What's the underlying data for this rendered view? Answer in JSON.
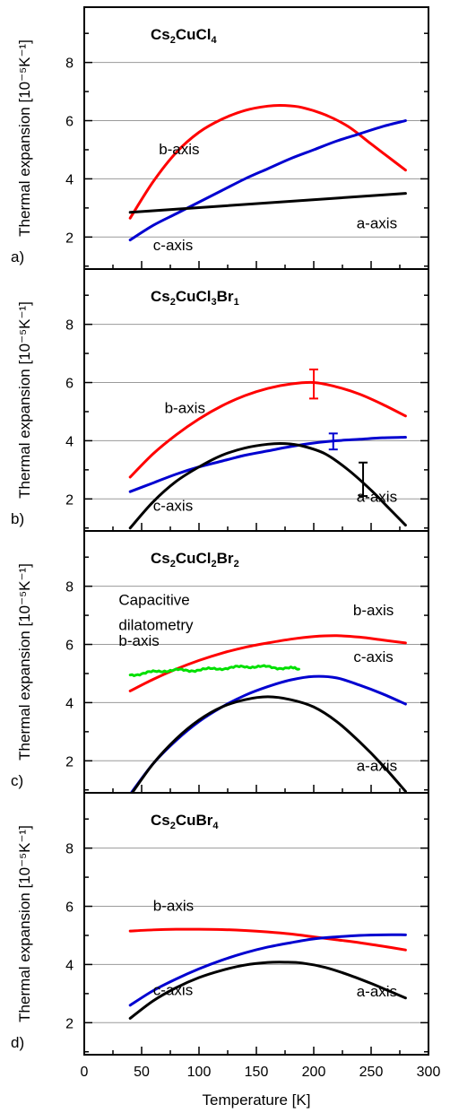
{
  "chart_data": [
    {
      "type": "line",
      "panel": "a)",
      "title": {
        "base": "Cs",
        "parts": [
          [
            "2",
            "sub"
          ],
          [
            "CuCl",
            "base"
          ],
          [
            "4",
            "sub"
          ]
        ]
      },
      "ylabel": "Thermal expansion [10⁻⁵K⁻¹]",
      "ylim": [
        0.9,
        9.9
      ],
      "yticks": [
        2,
        4,
        6,
        8
      ],
      "xlim": [
        0,
        300
      ],
      "series": [
        {
          "name": "b-axis",
          "color": "#ff0000",
          "label_pos": [
            65,
            4.85
          ],
          "x": [
            40,
            60,
            80,
            100,
            120,
            140,
            160,
            175,
            190,
            210,
            230,
            250,
            265,
            280
          ],
          "y": [
            2.65,
            3.9,
            4.9,
            5.6,
            6.05,
            6.35,
            6.5,
            6.52,
            6.45,
            6.2,
            5.8,
            5.2,
            4.75,
            4.3
          ]
        },
        {
          "name": "c-axis",
          "color": "#0000d0",
          "label_pos": [
            60,
            1.55
          ],
          "x": [
            40,
            60,
            80,
            100,
            120,
            140,
            160,
            180,
            200,
            220,
            240,
            260,
            280
          ],
          "y": [
            1.9,
            2.4,
            2.8,
            3.2,
            3.6,
            4.0,
            4.35,
            4.7,
            5.0,
            5.3,
            5.55,
            5.8,
            6.0
          ]
        },
        {
          "name": "a-axis",
          "color": "#000000",
          "label_pos": [
            255,
            2.3
          ],
          "x": [
            40,
            280
          ],
          "y": [
            2.85,
            3.5
          ]
        }
      ],
      "errorbars": []
    },
    {
      "type": "line",
      "panel": "b)",
      "title": {
        "base": "Cs",
        "parts": [
          [
            "2",
            "sub"
          ],
          [
            "CuCl",
            "base"
          ],
          [
            "3",
            "sub"
          ],
          [
            "Br",
            "base"
          ],
          [
            "1",
            "sub"
          ]
        ]
      },
      "ylabel": "Thermal expansion [10⁻⁵K⁻¹]",
      "ylim": [
        0.9,
        9.9
      ],
      "yticks": [
        2,
        4,
        6,
        8
      ],
      "xlim": [
        0,
        300
      ],
      "series": [
        {
          "name": "b-axis",
          "color": "#ff0000",
          "label_pos": [
            70,
            4.95
          ],
          "x": [
            40,
            60,
            80,
            100,
            120,
            140,
            160,
            180,
            200,
            220,
            240,
            260,
            280
          ],
          "y": [
            2.75,
            3.55,
            4.2,
            4.75,
            5.2,
            5.55,
            5.8,
            5.95,
            6.0,
            5.85,
            5.6,
            5.25,
            4.85
          ]
        },
        {
          "name": "c-axis",
          "color": "#0000d0",
          "label_pos": [
            60,
            1.6
          ],
          "x": [
            40,
            60,
            80,
            100,
            120,
            140,
            160,
            180,
            200,
            220,
            240,
            260,
            280
          ],
          "y": [
            2.25,
            2.55,
            2.85,
            3.1,
            3.3,
            3.5,
            3.65,
            3.8,
            3.92,
            4.0,
            4.05,
            4.1,
            4.12
          ]
        },
        {
          "name": "a-axis",
          "color": "#000000",
          "label_pos": [
            255,
            1.9
          ],
          "x": [
            40,
            60,
            80,
            100,
            120,
            140,
            160,
            175,
            190,
            210,
            230,
            250,
            265,
            280
          ],
          "y": [
            1.0,
            1.9,
            2.6,
            3.1,
            3.5,
            3.75,
            3.88,
            3.9,
            3.82,
            3.55,
            3.0,
            2.3,
            1.7,
            1.1
          ]
        }
      ],
      "errorbars": [
        {
          "x": 200,
          "y_low": 5.45,
          "y_high": 6.45,
          "color": "#ff0000"
        },
        {
          "x": 217,
          "y_low": 3.7,
          "y_high": 4.25,
          "color": "#0000d0"
        },
        {
          "x": 243,
          "y_low": 2.1,
          "y_high": 3.25,
          "color": "#000000"
        }
      ]
    },
    {
      "type": "line",
      "panel": "c)",
      "title": {
        "base": "Cs",
        "parts": [
          [
            "2",
            "sub"
          ],
          [
            "CuCl",
            "base"
          ],
          [
            "2",
            "sub"
          ],
          [
            "Br",
            "base"
          ],
          [
            "2",
            "sub"
          ]
        ]
      },
      "ylabel": "Thermal expansion [10⁻⁵K⁻¹]",
      "ylim": [
        0.9,
        9.9
      ],
      "yticks": [
        2,
        4,
        6,
        8
      ],
      "xlim": [
        0,
        300
      ],
      "annotation": {
        "lines": [
          "Capacitive",
          "dilatometry"
        ],
        "color": "#00e000",
        "pos": [
          30,
          7.35
        ],
        "line_gap": 0.85
      },
      "series": [
        {
          "name": "b-axis",
          "color": "#ff0000",
          "label_pos": [
            252,
            7.0
          ],
          "x": [
            40,
            60,
            80,
            100,
            120,
            140,
            160,
            180,
            200,
            220,
            240,
            260,
            280
          ],
          "y": [
            4.4,
            4.8,
            5.15,
            5.45,
            5.7,
            5.9,
            6.05,
            6.18,
            6.27,
            6.3,
            6.25,
            6.15,
            6.05
          ]
        },
        {
          "name": "c-axis",
          "color": "#0000d0",
          "label_pos": [
            252,
            5.4
          ],
          "x": [
            40,
            60,
            80,
            100,
            120,
            140,
            160,
            180,
            200,
            220,
            240,
            260,
            280
          ],
          "y": [
            0.85,
            1.9,
            2.7,
            3.35,
            3.85,
            4.25,
            4.55,
            4.78,
            4.9,
            4.85,
            4.6,
            4.3,
            3.95
          ]
        },
        {
          "name": "a-axis",
          "color": "#000000",
          "label_pos": [
            255,
            1.65
          ],
          "x": [
            40,
            60,
            80,
            100,
            120,
            140,
            160,
            180,
            200,
            220,
            240,
            260,
            280
          ],
          "y": [
            0.8,
            1.9,
            2.75,
            3.4,
            3.85,
            4.1,
            4.2,
            4.1,
            3.85,
            3.35,
            2.65,
            1.85,
            0.95
          ]
        },
        {
          "name": "b-axis",
          "color": "#00e000",
          "label_pos": [
            30,
            5.95
          ],
          "noisy": true,
          "x": [
            40,
            50,
            60,
            70,
            80,
            90,
            100,
            110,
            120,
            130,
            140,
            150,
            160,
            170,
            180,
            187
          ],
          "y": [
            4.95,
            5.0,
            5.05,
            5.1,
            5.12,
            5.1,
            5.13,
            5.15,
            5.18,
            5.2,
            5.24,
            5.24,
            5.22,
            5.2,
            5.18,
            5.15
          ]
        }
      ],
      "errorbars": []
    },
    {
      "type": "line",
      "panel": "d)",
      "title": {
        "base": "Cs",
        "parts": [
          [
            "2",
            "sub"
          ],
          [
            "CuBr",
            "base"
          ],
          [
            "4",
            "sub"
          ]
        ]
      },
      "ylabel": "Thermal expansion [10⁻⁵K⁻¹]",
      "ylim": [
        0.9,
        9.9
      ],
      "yticks": [
        2,
        4,
        6,
        8
      ],
      "xlim": [
        0,
        300
      ],
      "xlabel": "Temperature [K]",
      "xticks": [
        0,
        50,
        100,
        150,
        200,
        250,
        300
      ],
      "series": [
        {
          "name": "b-axis",
          "color": "#ff0000",
          "label_pos": [
            60,
            5.85
          ],
          "x": [
            40,
            60,
            80,
            100,
            120,
            140,
            160,
            180,
            200,
            220,
            240,
            260,
            280
          ],
          "y": [
            5.15,
            5.19,
            5.21,
            5.21,
            5.2,
            5.17,
            5.12,
            5.05,
            4.95,
            4.85,
            4.75,
            4.63,
            4.5
          ]
        },
        {
          "name": "c-axis",
          "color": "#0000d0",
          "label_pos": [
            60,
            2.95
          ],
          "x": [
            40,
            60,
            80,
            100,
            120,
            140,
            160,
            180,
            200,
            220,
            240,
            260,
            280
          ],
          "y": [
            2.6,
            3.1,
            3.5,
            3.85,
            4.15,
            4.4,
            4.6,
            4.75,
            4.88,
            4.95,
            5.0,
            5.02,
            5.02
          ]
        },
        {
          "name": "a-axis",
          "color": "#000000",
          "label_pos": [
            255,
            2.9
          ],
          "x": [
            40,
            60,
            80,
            100,
            120,
            140,
            160,
            175,
            190,
            210,
            230,
            250,
            265,
            280
          ],
          "y": [
            2.15,
            2.75,
            3.2,
            3.55,
            3.8,
            3.98,
            4.07,
            4.08,
            4.05,
            3.9,
            3.65,
            3.35,
            3.1,
            2.85
          ]
        }
      ],
      "errorbars": []
    }
  ]
}
